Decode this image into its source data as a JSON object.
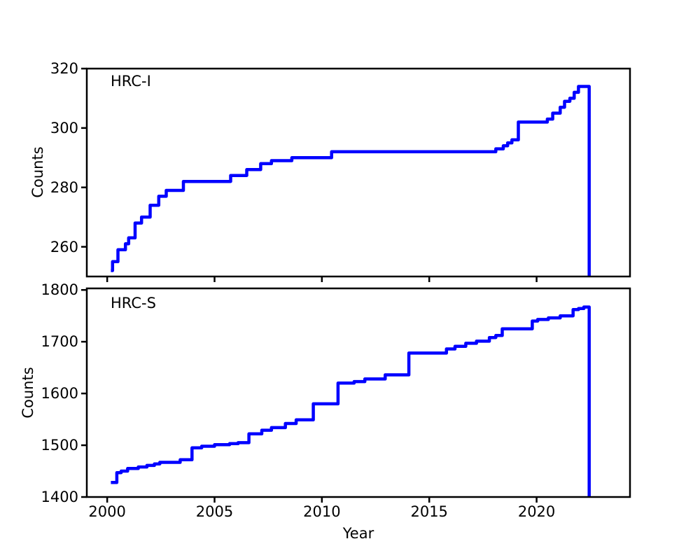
{
  "figure": {
    "background": "#ffffff",
    "text_color": "#000000",
    "spine_color": "#000000"
  },
  "chart_data": [
    {
      "type": "line",
      "style": "step-after",
      "series_label": "HRC-I",
      "ylabel": "Counts",
      "xlabel": "",
      "line_color": "#0000ff",
      "xlim": [
        1999.05,
        2024.35
      ],
      "ylim": [
        250,
        320
      ],
      "xticks": [
        2000,
        2005,
        2010,
        2015,
        2020
      ],
      "yticks": [
        260,
        280,
        300,
        320
      ],
      "show_x_tick_labels": false,
      "grid": false,
      "points": [
        [
          2000.17,
          252
        ],
        [
          2000.25,
          255
        ],
        [
          2000.5,
          259
        ],
        [
          2000.85,
          261
        ],
        [
          2001.0,
          263
        ],
        [
          2001.3,
          268
        ],
        [
          2001.6,
          270
        ],
        [
          2002.0,
          274
        ],
        [
          2002.4,
          277
        ],
        [
          2002.75,
          279
        ],
        [
          2003.55,
          282
        ],
        [
          2005.75,
          284
        ],
        [
          2006.5,
          286
        ],
        [
          2007.15,
          288
        ],
        [
          2007.65,
          289
        ],
        [
          2008.6,
          290
        ],
        [
          2010.45,
          292
        ],
        [
          2018.1,
          293
        ],
        [
          2018.45,
          294
        ],
        [
          2018.65,
          295
        ],
        [
          2018.85,
          296
        ],
        [
          2019.15,
          302
        ],
        [
          2020.5,
          303
        ],
        [
          2020.75,
          305
        ],
        [
          2021.1,
          307
        ],
        [
          2021.3,
          309
        ],
        [
          2021.55,
          310
        ],
        [
          2021.75,
          312
        ],
        [
          2021.95,
          314
        ],
        [
          2022.45,
          250
        ]
      ]
    },
    {
      "type": "line",
      "style": "step-after",
      "series_label": "HRC-S",
      "ylabel": "Counts",
      "xlabel": "Year",
      "line_color": "#0000ff",
      "xlim": [
        1999.05,
        2024.35
      ],
      "ylim": [
        1400,
        1803
      ],
      "xticks": [
        2000,
        2005,
        2010,
        2015,
        2020
      ],
      "yticks": [
        1400,
        1500,
        1600,
        1700,
        1800
      ],
      "show_x_tick_labels": true,
      "grid": false,
      "points": [
        [
          2000.17,
          1428
        ],
        [
          2000.45,
          1447
        ],
        [
          2000.65,
          1450
        ],
        [
          2000.95,
          1455
        ],
        [
          2001.45,
          1458
        ],
        [
          2001.85,
          1461
        ],
        [
          2002.2,
          1464
        ],
        [
          2002.45,
          1467
        ],
        [
          2003.4,
          1472
        ],
        [
          2003.95,
          1495
        ],
        [
          2004.4,
          1498
        ],
        [
          2005.0,
          1501
        ],
        [
          2005.7,
          1503
        ],
        [
          2006.1,
          1505
        ],
        [
          2006.6,
          1522
        ],
        [
          2007.2,
          1529
        ],
        [
          2007.65,
          1534
        ],
        [
          2008.3,
          1542
        ],
        [
          2008.8,
          1549
        ],
        [
          2009.6,
          1580
        ],
        [
          2010.75,
          1620
        ],
        [
          2011.5,
          1623
        ],
        [
          2012.0,
          1628
        ],
        [
          2012.95,
          1636
        ],
        [
          2014.05,
          1678
        ],
        [
          2015.8,
          1686
        ],
        [
          2016.2,
          1691
        ],
        [
          2016.7,
          1697
        ],
        [
          2017.2,
          1701
        ],
        [
          2017.8,
          1708
        ],
        [
          2018.1,
          1712
        ],
        [
          2018.4,
          1725
        ],
        [
          2019.8,
          1740
        ],
        [
          2020.05,
          1743
        ],
        [
          2020.55,
          1746
        ],
        [
          2021.1,
          1750
        ],
        [
          2021.7,
          1762
        ],
        [
          2021.95,
          1764
        ],
        [
          2022.2,
          1767
        ],
        [
          2022.45,
          1400
        ]
      ]
    }
  ]
}
